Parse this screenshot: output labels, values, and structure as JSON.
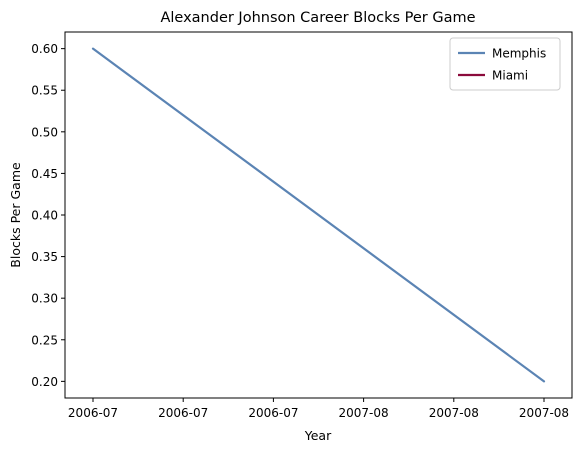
{
  "chart_data": {
    "type": "line",
    "title": "Alexander Johnson Career Blocks Per Game",
    "xlabel": "Year",
    "ylabel": "Blocks Per Game",
    "x_tick_labels": [
      "2006-07",
      "2006-07",
      "2006-07",
      "2007-08",
      "2007-08",
      "2007-08"
    ],
    "y_ticks": [
      0.2,
      0.25,
      0.3,
      0.35,
      0.4,
      0.45,
      0.5,
      0.55,
      0.6
    ],
    "ylim": [
      0.18,
      0.62
    ],
    "grid": false,
    "legend_position": "top-right",
    "series": [
      {
        "name": "Memphis",
        "color": "#5b84b4",
        "points": [
          {
            "x": "2006-07",
            "y": 0.6
          },
          {
            "x": "2007-08",
            "y": 0.2
          }
        ]
      },
      {
        "name": "Miami",
        "color": "#8b0a3b",
        "points": []
      }
    ]
  }
}
